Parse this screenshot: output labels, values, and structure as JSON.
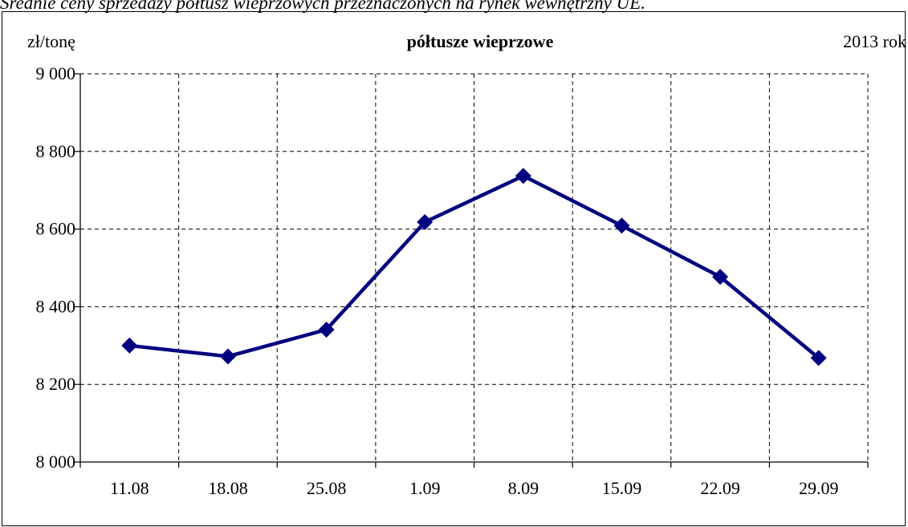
{
  "caption": "Średnie ceny sprzedaży półtusz wieprzowych przeznaczonych na rynek wewnętrzny UE.",
  "chart_data": {
    "type": "line",
    "title": "półtusze wieprzowe",
    "unit_label": "zł/tonę",
    "year_label": "2013 rok",
    "xlabel": "",
    "ylabel": "",
    "categories": [
      "11.08",
      "18.08",
      "25.08",
      "1.09",
      "8.09",
      "15.09",
      "22.09",
      "29.09"
    ],
    "series": [
      {
        "values": [
          8300,
          8272,
          8341,
          8618,
          8737,
          8609,
          8477,
          8268
        ]
      }
    ],
    "ylim": [
      8000,
      9000
    ],
    "yticks": [
      8000,
      8200,
      8400,
      8600,
      8800,
      9000
    ],
    "ytick_labels": [
      "8 000",
      "8 200",
      "8 400",
      "8 600",
      "8 800",
      "9 000"
    ],
    "grid": true,
    "legend": "none",
    "line_color": "#000080",
    "marker": "diamond"
  }
}
